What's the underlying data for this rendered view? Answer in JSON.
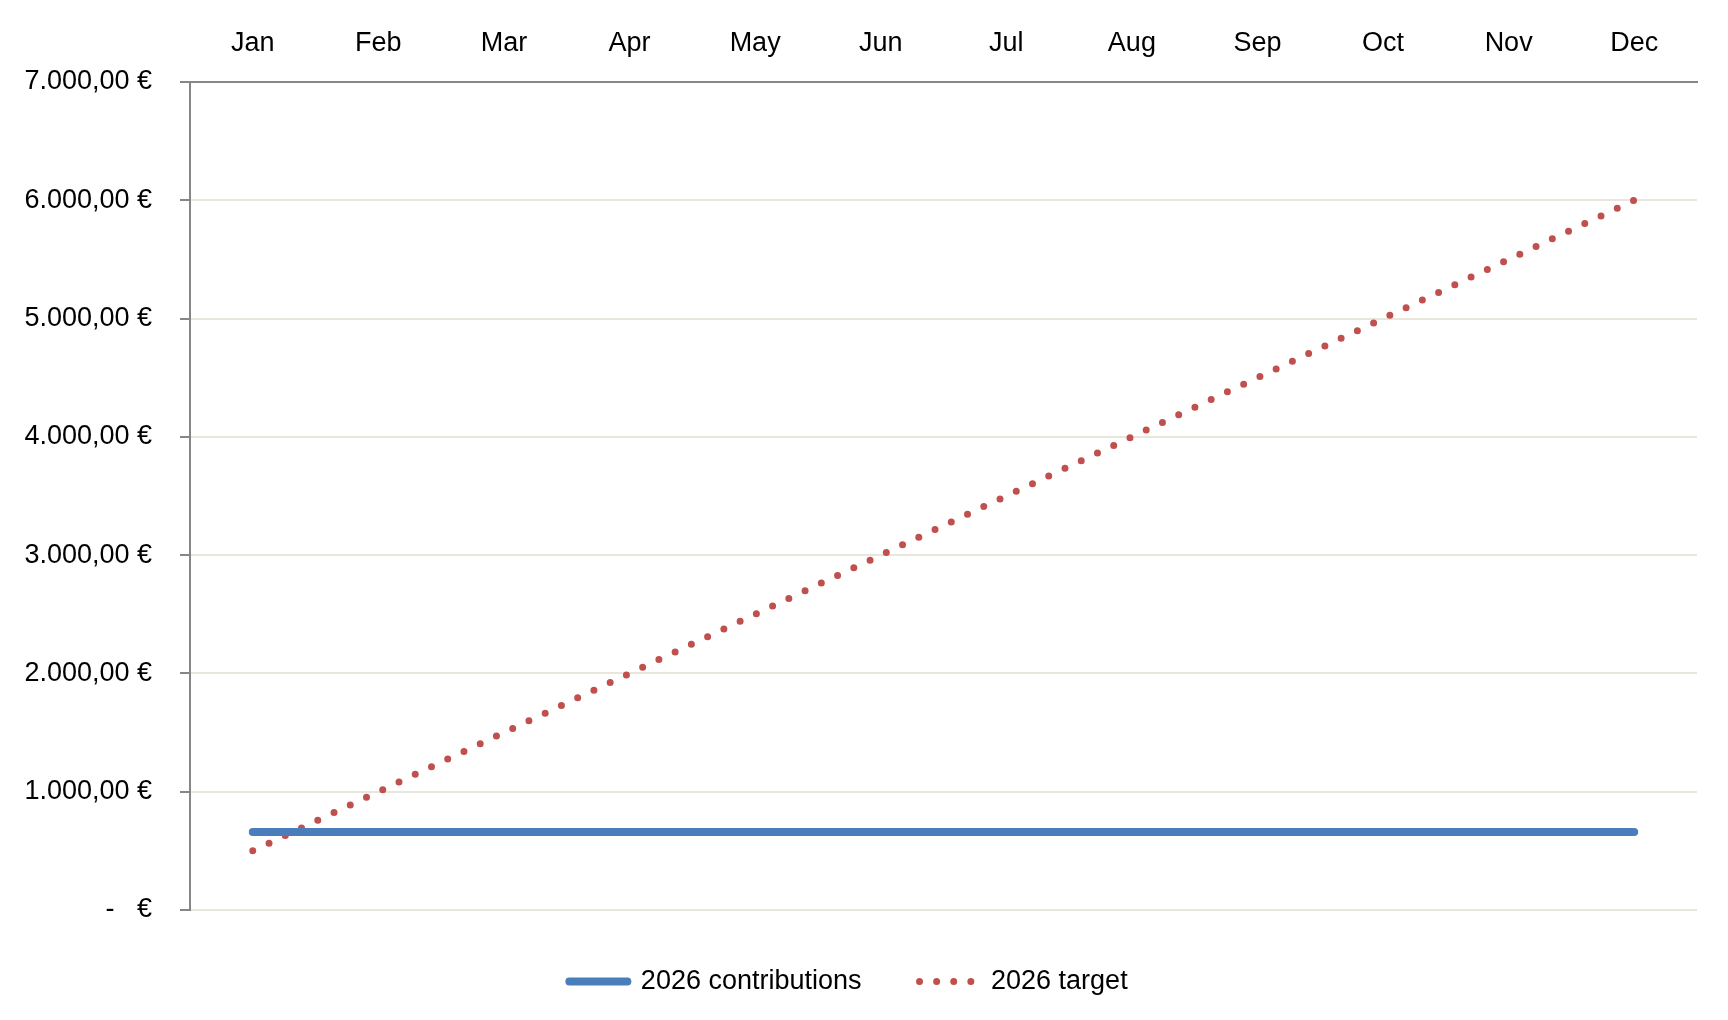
{
  "chart_data": {
    "type": "line",
    "categories": [
      "Jan",
      "Feb",
      "Mar",
      "Apr",
      "May",
      "Jun",
      "Jul",
      "Aug",
      "Sep",
      "Oct",
      "Nov",
      "Dec"
    ],
    "series": [
      {
        "name": "2026 contributions",
        "color": "#4a7ebb",
        "line_style": "solid",
        "values": [
          660,
          660,
          660,
          660,
          660,
          660,
          660,
          660,
          660,
          660,
          660,
          660
        ]
      },
      {
        "name": "2026 target",
        "color": "#c0504d",
        "line_style": "dotted",
        "values": [
          500,
          1000,
          1500,
          2000,
          2500,
          3000,
          3500,
          4000,
          4500,
          5000,
          5500,
          6000
        ]
      }
    ],
    "ylim": [
      0,
      7000
    ],
    "yticks": [
      {
        "value": 0,
        "label": "-   €"
      },
      {
        "value": 1000,
        "label": "1.000,00 €"
      },
      {
        "value": 2000,
        "label": "2.000,00 €"
      },
      {
        "value": 3000,
        "label": "3.000,00 €"
      },
      {
        "value": 4000,
        "label": "4.000,00 €"
      },
      {
        "value": 5000,
        "label": "5.000,00 €"
      },
      {
        "value": 6000,
        "label": "6.000,00 €"
      },
      {
        "value": 7000,
        "label": "7.000,00 €"
      }
    ],
    "grid": "y",
    "legend": "bottom",
    "marker": "none"
  }
}
